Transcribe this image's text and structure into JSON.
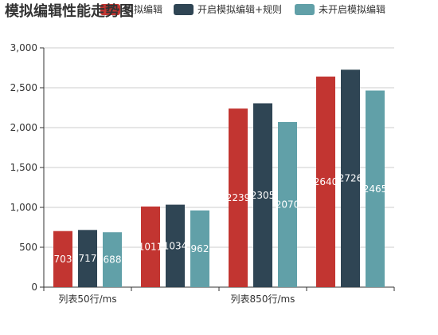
{
  "chart_data": {
    "type": "bar",
    "title": "模拟编辑性能走势图",
    "categories": [
      "列表50行/ms",
      "",
      "列表850行/ms",
      ""
    ],
    "series": [
      {
        "name": "模拟编辑",
        "color": "#c23531",
        "values": [
          703,
          1011,
          2239,
          2640
        ]
      },
      {
        "name": "开启模拟编辑+规则",
        "color": "#2f4554",
        "values": [
          717,
          1034,
          2305,
          2726
        ]
      },
      {
        "name": "未开启模拟编辑",
        "color": "#61a0a8",
        "values": [
          688,
          962,
          2070,
          2465
        ]
      }
    ],
    "ylim": [
      0,
      3000
    ],
    "yticks": [
      0,
      500,
      1000,
      1500,
      2000,
      2500,
      3000
    ],
    "ytick_labels": [
      "0",
      "500",
      "1,000",
      "1,500",
      "2,000",
      "2,500",
      "3,000"
    ],
    "grid": true,
    "legend_position": "top"
  }
}
